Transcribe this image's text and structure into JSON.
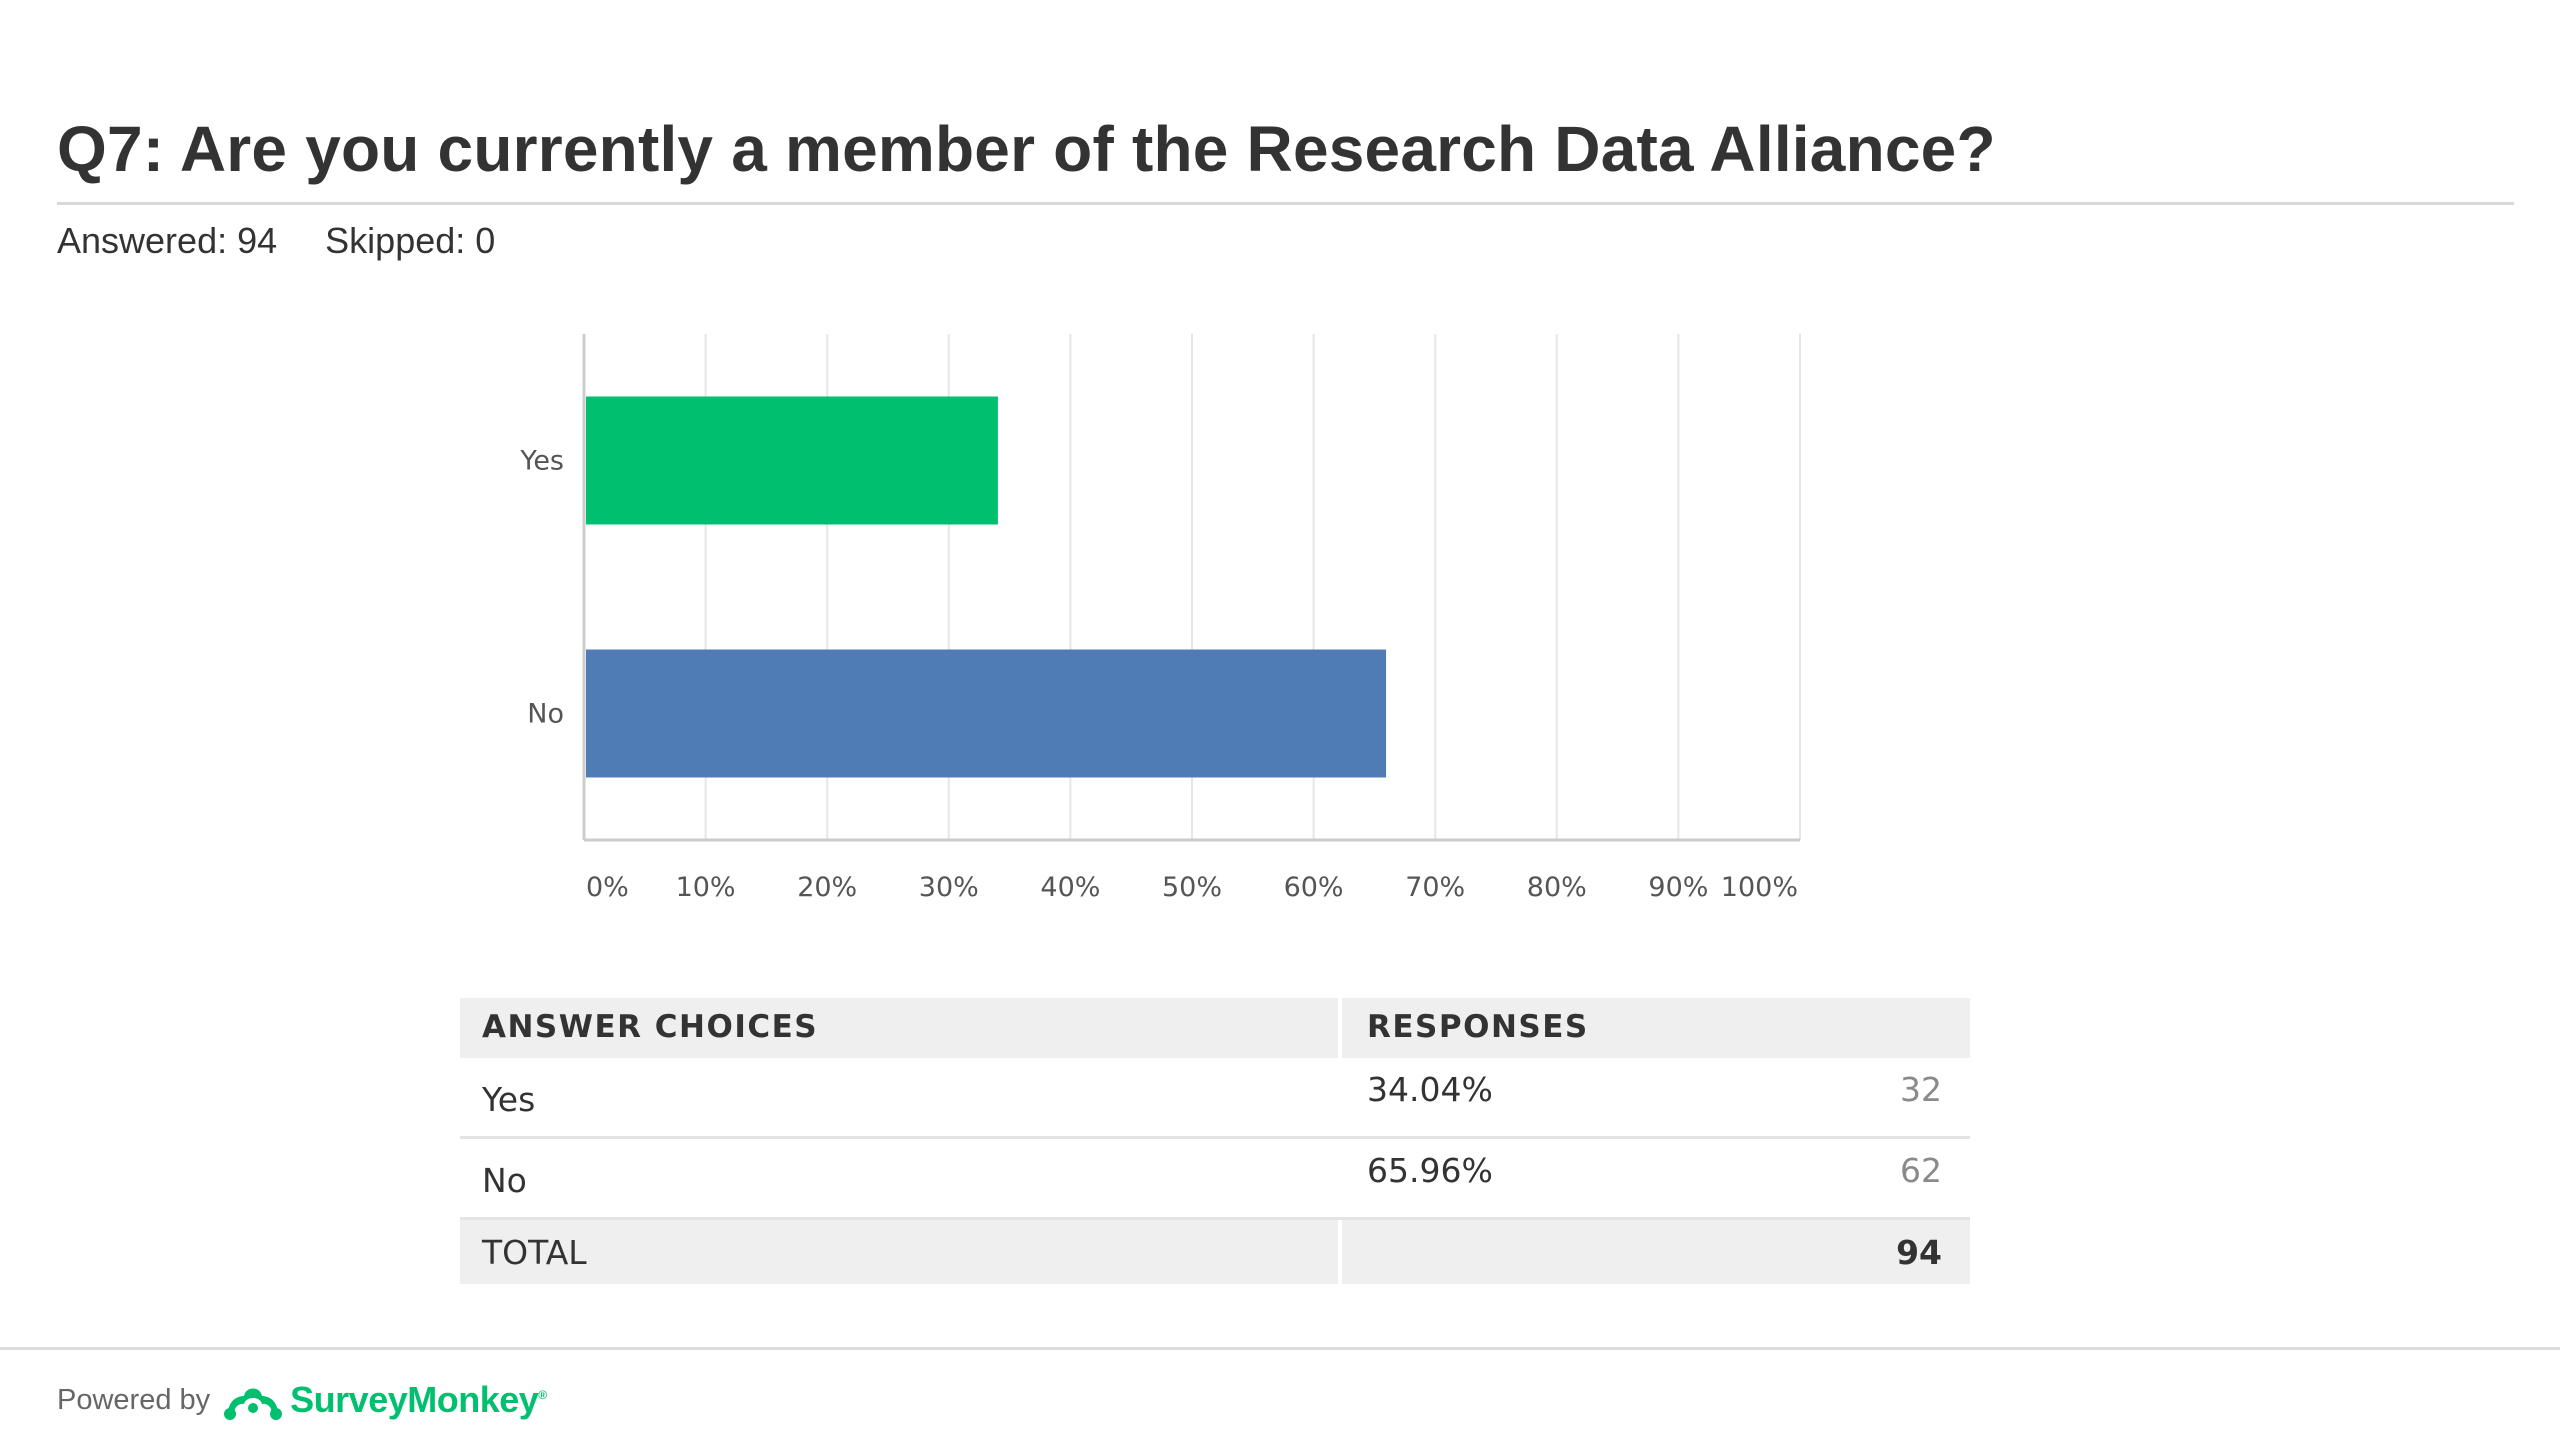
{
  "question": {
    "title": "Q7: Are you currently a member of the Research Data Alliance?",
    "answered": "Answered: 94",
    "skipped": "Skipped: 0"
  },
  "colors": {
    "yes_bar": "#00bf6f",
    "no_bar": "#507cb6",
    "grid": "#e6e6e6",
    "axis": "#cccccc",
    "brand": "#00bf6f"
  },
  "chart_data": {
    "type": "bar",
    "orientation": "horizontal",
    "categories": [
      "Yes",
      "No"
    ],
    "values": [
      34.04,
      65.96
    ],
    "xlim": [
      0,
      100
    ],
    "x_ticks": [
      "0%",
      "10%",
      "20%",
      "30%",
      "40%",
      "50%",
      "60%",
      "70%",
      "80%",
      "90%",
      "100%"
    ],
    "grid": true,
    "legend": "none"
  },
  "table": {
    "headers": {
      "choice": "ANSWER CHOICES",
      "responses": "RESPONSES"
    },
    "rows": [
      {
        "label": "Yes",
        "percent": "34.04%",
        "count": "32"
      },
      {
        "label": "No",
        "percent": "65.96%",
        "count": "62"
      }
    ],
    "total": {
      "label": "TOTAL",
      "count": "94"
    }
  },
  "footer": {
    "powered_by": "Powered by",
    "brand": "SurveyMonkey",
    "logo_icon": "surveymonkey-logo-icon"
  }
}
